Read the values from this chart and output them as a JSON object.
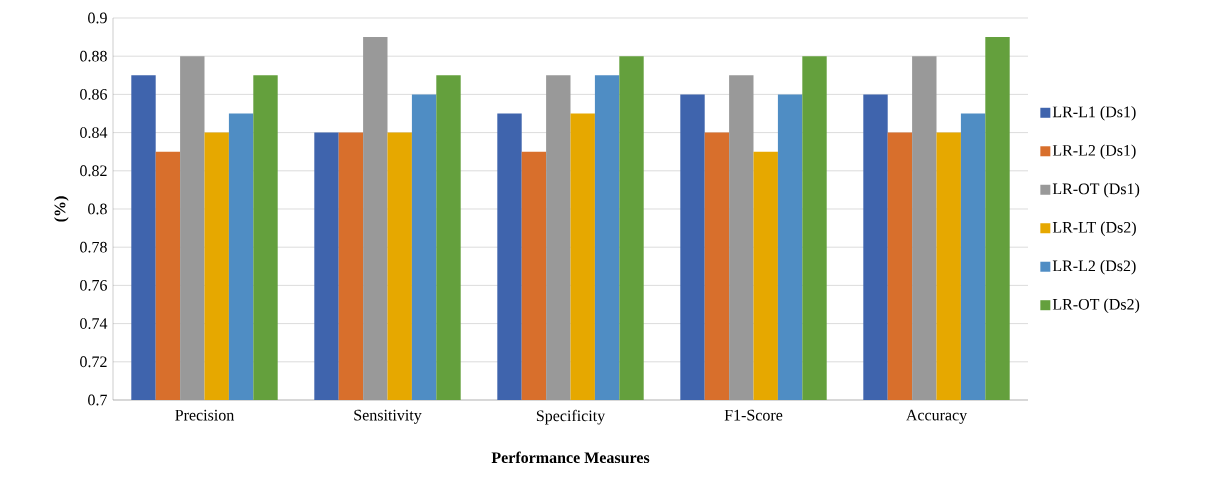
{
  "chart_data": {
    "type": "bar",
    "xlabel": "Performance Measures",
    "ylabel": "(%)",
    "categories": [
      "Precision",
      "Sensitivity",
      "Specificity",
      "F1-Score",
      "Accuracy"
    ],
    "series": [
      {
        "name": "LR-L1 (Ds1)",
        "color": "#3f64ad",
        "values": [
          0.87,
          0.84,
          0.85,
          0.86,
          0.86
        ]
      },
      {
        "name": "LR-L2 (Ds1)",
        "color": "#d86f2c",
        "values": [
          0.83,
          0.84,
          0.83,
          0.84,
          0.84
        ]
      },
      {
        "name": "LR-OT (Ds1)",
        "color": "#999999",
        "values": [
          0.88,
          0.89,
          0.87,
          0.87,
          0.88
        ]
      },
      {
        "name": "LR-LT (Ds2)",
        "color": "#e6a800",
        "values": [
          0.84,
          0.84,
          0.85,
          0.83,
          0.84
        ]
      },
      {
        "name": "LR-L2 (Ds2)",
        "color": "#4f8dc4",
        "values": [
          0.85,
          0.86,
          0.87,
          0.86,
          0.85
        ]
      },
      {
        "name": "LR-OT (Ds2)",
        "color": "#64a03d",
        "values": [
          0.87,
          0.87,
          0.88,
          0.88,
          0.89
        ]
      }
    ],
    "ylim": [
      0.7,
      0.9
    ],
    "yticks": [
      0.7,
      0.72,
      0.74,
      0.76,
      0.78,
      0.8,
      0.82,
      0.84,
      0.86,
      0.88,
      0.9
    ],
    "grid": "y",
    "legend": "right"
  }
}
